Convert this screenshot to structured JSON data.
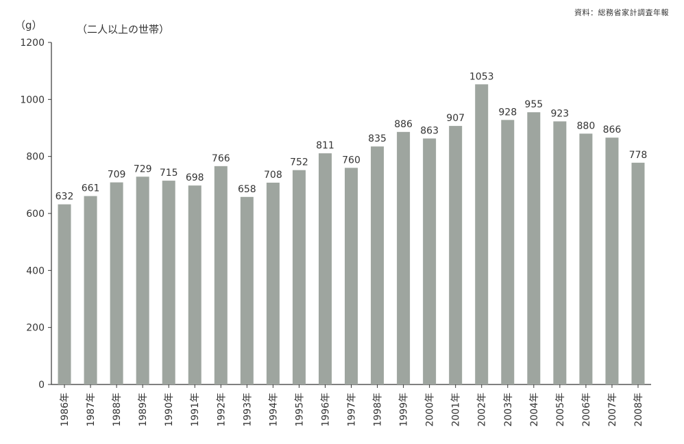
{
  "source_note": "資料：総務省家計調査年報",
  "unit": "（g）",
  "subtitle": "（二人以上の世帯）",
  "colors": {
    "bar": "#9ea59f",
    "axis": "#333333"
  },
  "chart_data": {
    "type": "bar",
    "categories": [
      "1986年",
      "1987年",
      "1988年",
      "1989年",
      "1990年",
      "1991年",
      "1992年",
      "1993年",
      "1994年",
      "1995年",
      "1996年",
      "1997年",
      "1998年",
      "1999年",
      "2000年",
      "2001年",
      "2002年",
      "2003年",
      "2004年",
      "2005年",
      "2006年",
      "2007年",
      "2008年"
    ],
    "values": [
      632,
      661,
      709,
      729,
      715,
      698,
      766,
      658,
      708,
      752,
      811,
      760,
      835,
      886,
      863,
      907,
      1053,
      928,
      955,
      923,
      880,
      866,
      778
    ],
    "yticks": [
      0,
      200,
      400,
      600,
      800,
      1000,
      1200
    ],
    "ylim": [
      0,
      1200
    ],
    "grid": false,
    "data_labels": true
  }
}
